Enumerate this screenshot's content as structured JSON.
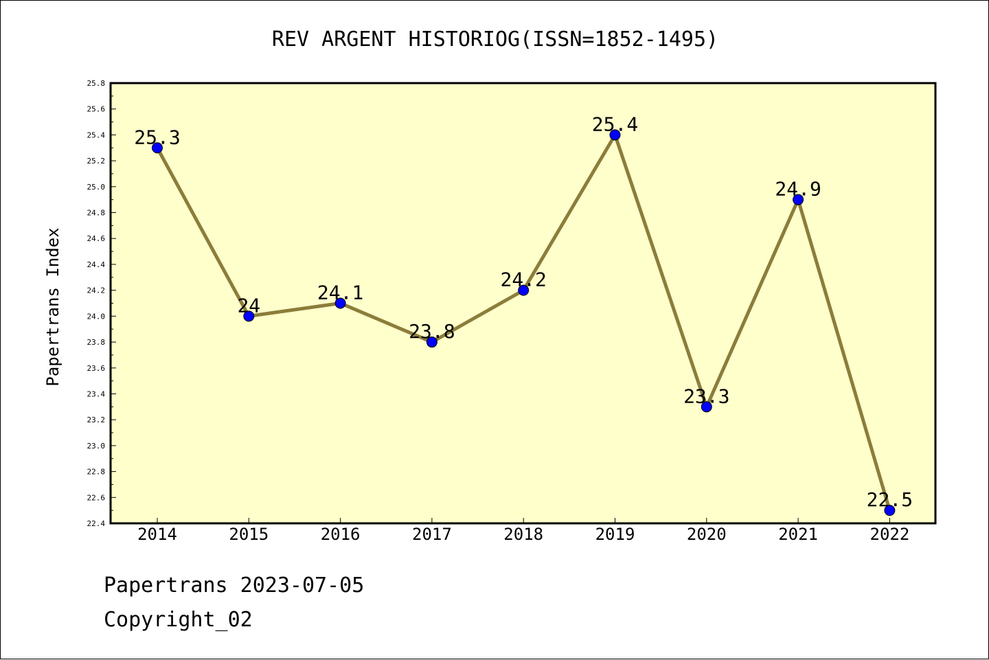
{
  "chart_data": {
    "type": "line",
    "title": "REV ARGENT HISTORIOG(ISSN=1852-1495)",
    "xlabel": "",
    "ylabel": "Papertrans Index",
    "categories": [
      "2014",
      "2015",
      "2016",
      "2017",
      "2018",
      "2019",
      "2020",
      "2021",
      "2022"
    ],
    "values": [
      25.3,
      24.0,
      24.1,
      23.8,
      24.2,
      25.4,
      23.3,
      24.9,
      22.5
    ],
    "data_labels": [
      "25.3",
      "24",
      "24.1",
      "23.8",
      "24.2",
      "25.4",
      "23.3",
      "24.9",
      "22.5"
    ],
    "ylim": [
      22.4,
      25.8
    ],
    "yticks": [
      "22.4",
      "22.6",
      "22.8",
      "23.0",
      "23.2",
      "23.4",
      "23.6",
      "23.8",
      "24.0",
      "24.2",
      "24.4",
      "24.6",
      "24.8",
      "25.0",
      "25.2",
      "25.4",
      "25.6",
      "25.8"
    ],
    "grid": false,
    "colors": {
      "plot_background": "#ffffcc",
      "line": "#8b7d3a",
      "marker": "#0000ff"
    }
  },
  "footer": {
    "line1": "Papertrans 2023-07-05",
    "line2": "Copyright_02"
  }
}
